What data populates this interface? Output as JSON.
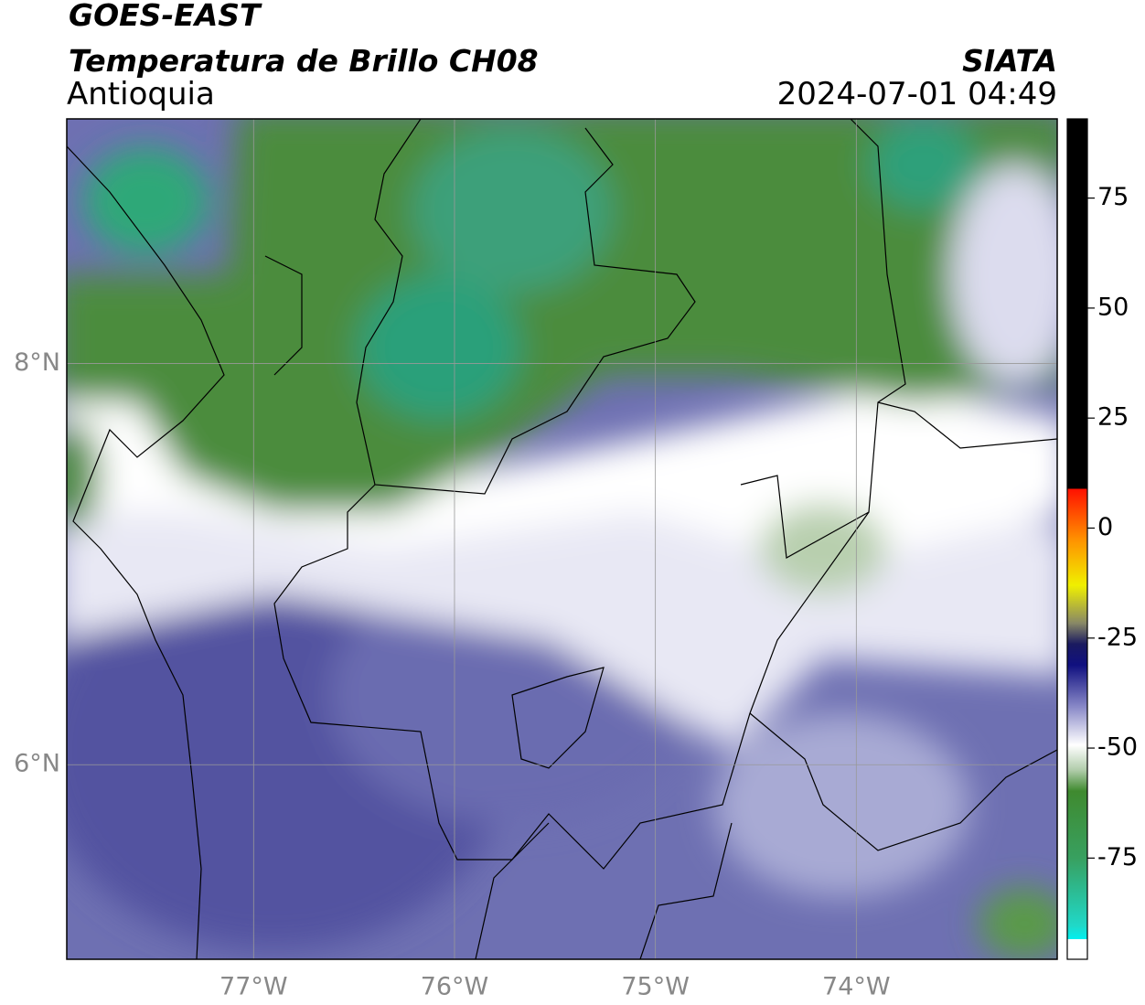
{
  "header": {
    "title": "GOES-EAST",
    "subtitle": "Temperatura de Brillo CH08",
    "region": "Antioquia",
    "source": "SIATA",
    "datetime": "2024-07-01 04:49"
  },
  "map": {
    "lon_range": [
      -77.93,
      -73.0
    ],
    "lat_range": [
      5.03,
      9.22
    ],
    "lon_ticks": [
      {
        "value": -77,
        "label": "77°W"
      },
      {
        "value": -76,
        "label": "76°W"
      },
      {
        "value": -75,
        "label": "75°W"
      },
      {
        "value": -74,
        "label": "74°W"
      }
    ],
    "lat_ticks": [
      {
        "value": 8,
        "label": "8°N"
      },
      {
        "value": 6,
        "label": "6°N"
      }
    ]
  },
  "colorbar": {
    "range": [
      -98,
      93
    ],
    "ticks": [
      75,
      50,
      25,
      0,
      -25,
      -50,
      -75
    ]
  }
}
